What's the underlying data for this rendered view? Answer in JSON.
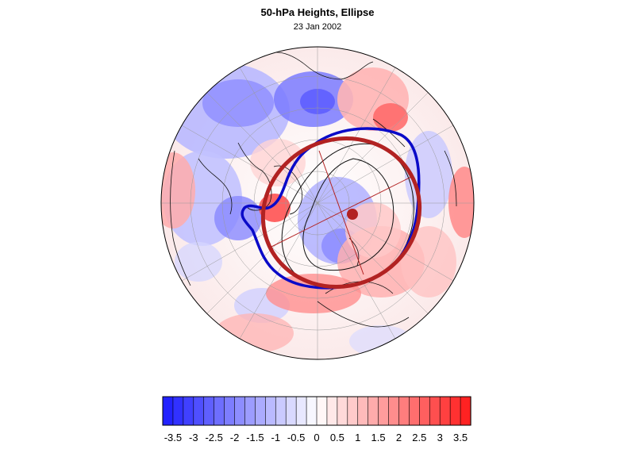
{
  "title": "50-hPa Heights, Ellipse",
  "subtitle": "23 Jan 2002",
  "colors": {
    "min": "#1a1aff",
    "mid": "#ffffff",
    "max": "#ff1a1a",
    "vortex_edge": "#0a0ac8",
    "ellipse": "#b22222",
    "ellipse_center": "#b22222"
  },
  "colorbar": {
    "min": -3.75,
    "max": 3.75,
    "step": 0.25,
    "labels": [
      "-3.5",
      "-3",
      "-2.5",
      "-2",
      "-1.5",
      "-1",
      "-0.5",
      "0",
      "0.5",
      "1",
      "1.5",
      "2",
      "2.5",
      "3",
      "3.5"
    ],
    "label_values": [
      -3.5,
      -3,
      -2.5,
      -2,
      -1.5,
      -1,
      -0.5,
      0,
      0.5,
      1,
      1.5,
      2,
      2.5,
      3,
      3.5
    ]
  },
  "map_icons": [
    "polar-globe",
    "anomaly-field",
    "coastlines",
    "vortex-edge-contour",
    "fitted-ellipse"
  ]
}
